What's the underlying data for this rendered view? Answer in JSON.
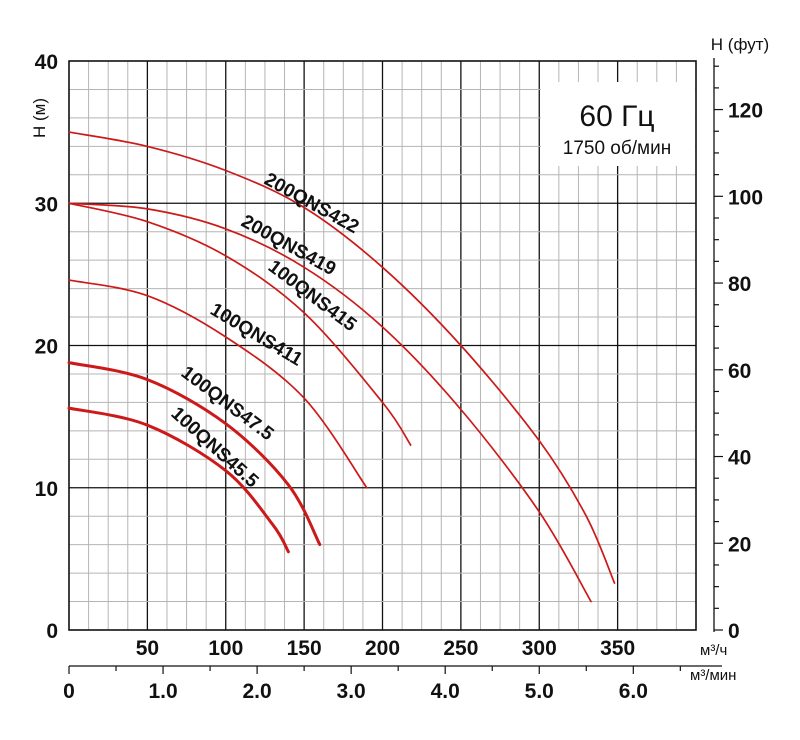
{
  "chart_data": {
    "type": "line",
    "title": "60 Гц",
    "subtitle": "1750 об/мин",
    "ylabel_left": "H (м)",
    "ylabel_right": "H (фут)",
    "xlabel_top_unit": "м³/ч",
    "xlabel_bottom_unit": "м³/мин",
    "xlim_m3h": [
      0,
      400
    ],
    "ylim_m": [
      0,
      40
    ],
    "ylim_ft": [
      0,
      131.2
    ],
    "x_ticks_m3h": [
      "50",
      "100",
      "150",
      "200",
      "250",
      "300",
      "350"
    ],
    "x_ticks_m3h_values": [
      50,
      100,
      150,
      200,
      250,
      300,
      350
    ],
    "x_ticks_m3min": [
      "0",
      "1.0",
      "2.0",
      "3.0",
      "4.0",
      "5.0",
      "6.0"
    ],
    "x_ticks_m3min_values": [
      0,
      1,
      2,
      3,
      4,
      5,
      6
    ],
    "y_ticks_m": [
      "0",
      "10",
      "20",
      "30",
      "40"
    ],
    "y_ticks_m_values": [
      0,
      10,
      20,
      30,
      40
    ],
    "y_ticks_ft": [
      "0",
      "20",
      "40",
      "60",
      "80",
      "100",
      "120"
    ],
    "y_ticks_ft_values": [
      0,
      20,
      40,
      60,
      80,
      100,
      120
    ],
    "grid": true,
    "series_color": "#cc1a1a",
    "series": [
      {
        "name": "200QNS422",
        "x": [
          0,
          50,
          100,
          150,
          200,
          250,
          300,
          330,
          348
        ],
        "y": [
          35,
          34,
          32.3,
          29.7,
          25.5,
          20,
          13.3,
          8,
          3.3
        ]
      },
      {
        "name": "200QNS419",
        "x": [
          0,
          50,
          100,
          150,
          200,
          250,
          300,
          333
        ],
        "y": [
          30,
          29.6,
          28.2,
          25.5,
          21.3,
          15.5,
          8.3,
          2
        ]
      },
      {
        "name": "100QNS415",
        "x": [
          0,
          50,
          100,
          150,
          200,
          218
        ],
        "y": [
          30,
          28.7,
          26.3,
          22.3,
          16,
          13
        ]
      },
      {
        "name": "100QNS411",
        "x": [
          0,
          50,
          100,
          150,
          190
        ],
        "y": [
          24.6,
          23.5,
          20.6,
          16.3,
          10
        ]
      },
      {
        "name": "100QNS47.5",
        "x": [
          0,
          50,
          100,
          140,
          160
        ],
        "y": [
          18.8,
          17.6,
          14.5,
          10.2,
          6
        ]
      },
      {
        "name": "100QNS45.5",
        "x": [
          0,
          50,
          100,
          130,
          140
        ],
        "y": [
          15.6,
          14.4,
          11.2,
          7.4,
          5.5
        ]
      }
    ]
  }
}
